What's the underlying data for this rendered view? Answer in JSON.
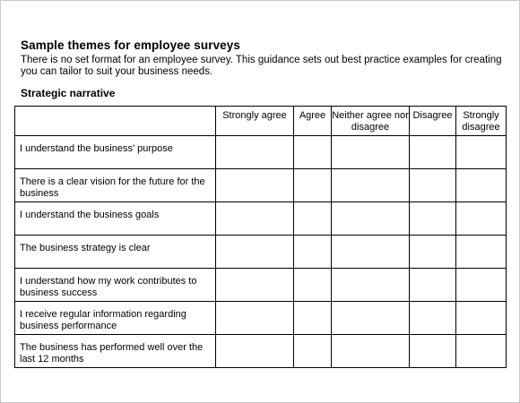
{
  "document": {
    "title": "Sample themes for employee surveys",
    "intro": "There is no set format for an employee survey. This guidance sets out best practice examples for creating you can tailor to suit your business needs.",
    "section_heading": "Strategic narrative"
  },
  "table": {
    "columns": {
      "statement": "",
      "strongly_agree": "Strongly agree",
      "agree": "Agree",
      "neither": "Neither agree nor disagree",
      "disagree": "Disagree",
      "strongly_disagree": "Strongly disagree"
    },
    "rows": [
      "I understand the business' purpose",
      "There is a clear vision for the future for the business",
      "I understand the business goals",
      "The business strategy is clear",
      "I understand how my work contributes to business success",
      "I receive regular information regarding business performance",
      "The business has performed well over the last 12 months"
    ]
  }
}
